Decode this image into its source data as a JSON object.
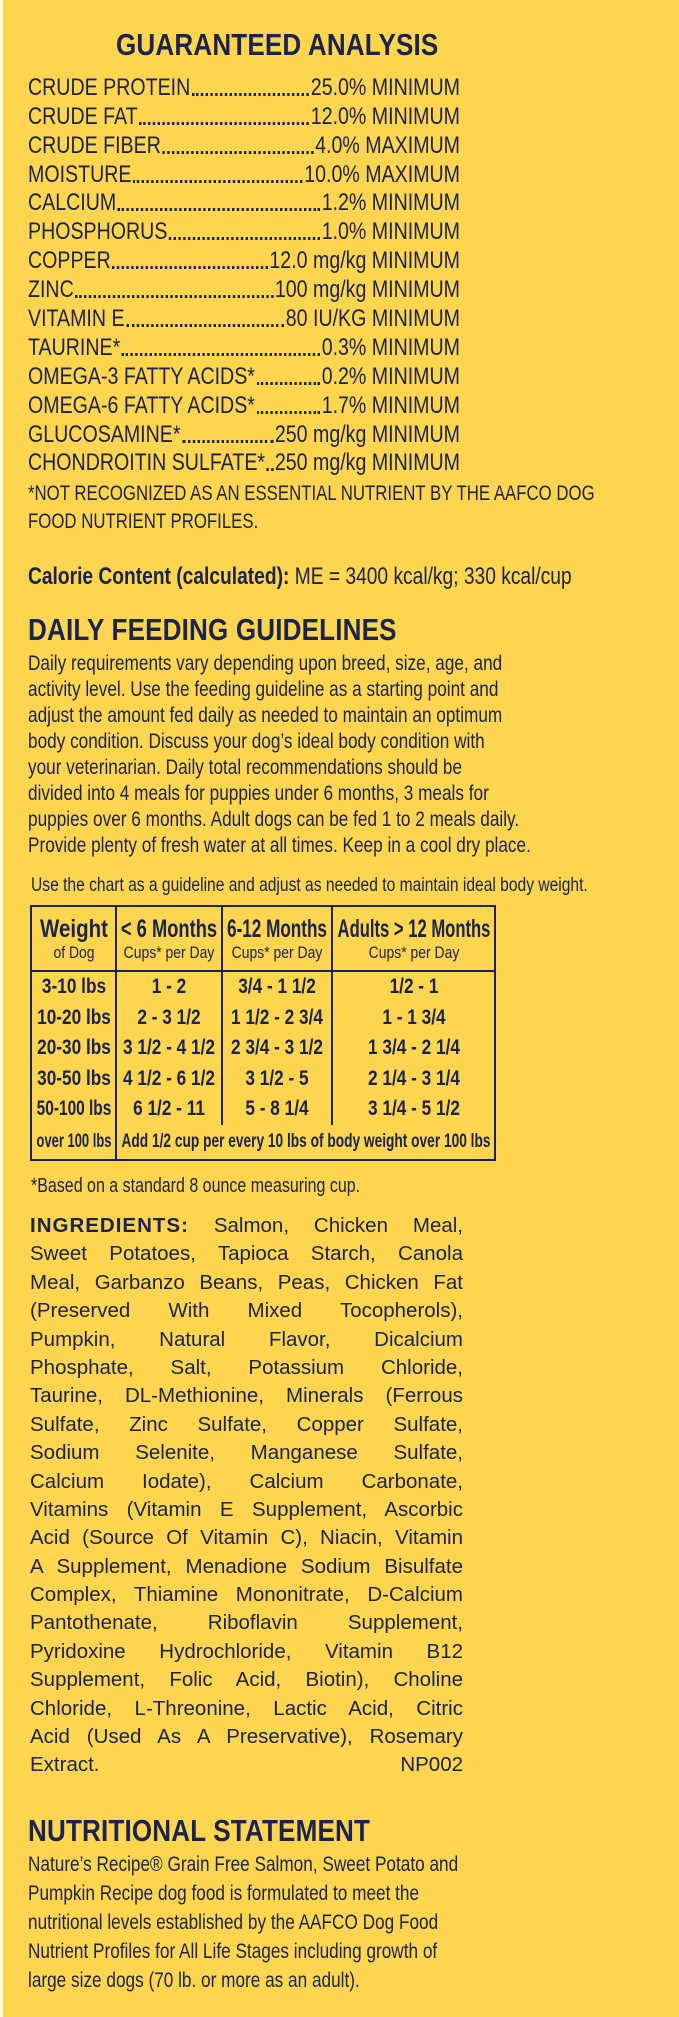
{
  "colors": {
    "background": "#FDD54E",
    "text": "#1B2350"
  },
  "guaranteed_analysis": {
    "title": "GUARANTEED ANALYSIS",
    "rows": [
      {
        "name": "CRUDE PROTEIN",
        "value": "25.0% MINIMUM"
      },
      {
        "name": "CRUDE FAT",
        "value": "12.0% MINIMUM"
      },
      {
        "name": "CRUDE FIBER",
        "value": "4.0% MAXIMUM"
      },
      {
        "name": "MOISTURE",
        "value": "10.0% MAXIMUM"
      },
      {
        "name": "CALCIUM",
        "value": "1.2% MINIMUM"
      },
      {
        "name": "PHOSPHORUS",
        "value": "1.0% MINIMUM"
      },
      {
        "name": "COPPER",
        "value": "12.0 mg/kg MINIMUM"
      },
      {
        "name": "ZINC",
        "value": "100 mg/kg MINIMUM"
      },
      {
        "name": "VITAMIN E",
        "value": "80 IU/KG MINIMUM"
      },
      {
        "name": "TAURINE*",
        "value": "0.3% MINIMUM"
      },
      {
        "name": "OMEGA-3 FATTY ACIDS*",
        "value": "0.2% MINIMUM"
      },
      {
        "name": "OMEGA-6 FATTY ACIDS*",
        "value": "1.7% MINIMUM"
      },
      {
        "name": "GLUCOSAMINE*",
        "value": "250 mg/kg MINIMUM"
      },
      {
        "name": "CHONDROITIN SULFATE*",
        "value": "250 mg/kg MINIMUM"
      }
    ],
    "footnote_lines": [
      "*NOT RECOGNIZED AS AN ESSENTIAL NUTRIENT BY THE AAFCO DOG",
      "FOOD NUTRIENT PROFILES."
    ]
  },
  "calorie": {
    "label": "Calorie Content (calculated):",
    "value": " ME = 3400 kcal/kg; 330 kcal/cup"
  },
  "feeding": {
    "title": "DAILY FEEDING GUIDELINES",
    "lines": [
      "Daily requirements vary depending upon breed, size, age, and",
      "activity level. Use the feeding guideline as a starting point and",
      "adjust the amount fed daily as needed to maintain an optimum",
      "body condition. Discuss your dog’s ideal body condition with",
      "your veterinarian. Daily total recommendations should be",
      "divided into 4 meals for puppies under 6 months, 3 meals for",
      "puppies over 6 months. Adult dogs can be fed 1 to 2 meals daily.",
      "Provide plenty of fresh water at all times. Keep in a cool dry place."
    ],
    "chart_note": "Use the chart as a guideline and adjust as needed to maintain ideal body weight.",
    "table": {
      "headers": [
        {
          "main": "Weight",
          "sub": "of Dog"
        },
        {
          "main": "< 6 Months",
          "sub": "Cups* per Day"
        },
        {
          "main": "6-12 Months",
          "sub": "Cups* per Day"
        },
        {
          "main": "Adults > 12 Months",
          "sub": "Cups* per Day"
        }
      ],
      "rows": [
        [
          "3-10 lbs",
          "1 - 2",
          "3/4 - 1 1/2",
          "1/2 - 1"
        ],
        [
          "10-20 lbs",
          "2 - 3 1/2",
          "1 1/2 - 2 3/4",
          "1 - 1 3/4"
        ],
        [
          "20-30 lbs",
          "3 1/2 - 4 1/2",
          "2 3/4 - 3 1/2",
          "1 3/4 - 2 1/4"
        ],
        [
          "30-50 lbs",
          "4 1/2 - 6 1/2",
          "3 1/2 - 5",
          "2 1/4 - 3 1/4"
        ],
        [
          "50-100 lbs",
          "6 1/2 - 11",
          "5 - 8 1/4",
          "3 1/4 - 5 1/2"
        ]
      ],
      "last_row": {
        "weight": "over 100 lbs",
        "note": "Add 1/2 cup per every 10 lbs of body weight over 100 lbs"
      }
    },
    "footnote": "*Based on a standard 8 ounce measuring cup."
  },
  "ingredients": {
    "label": "INGREDIENTS:",
    "lines": [
      " Salmon, Chicken Meal,",
      "Sweet Potatoes, Tapioca Starch, Canola",
      "Meal, Garbanzo Beans, Peas, Chicken Fat",
      "(Preserved With Mixed Tocopherols),",
      "Pumpkin, Natural Flavor, Dicalcium",
      "Phosphate, Salt, Potassium Chloride,",
      "Taurine, DL-Methionine, Minerals (Ferrous",
      "Sulfate, Zinc Sulfate, Copper Sulfate,",
      "Sodium Selenite, Manganese Sulfate,",
      "Calcium Iodate), Calcium Carbonate,",
      "Vitamins (Vitamin E Supplement, Ascorbic",
      "Acid (Source Of Vitamin C), Niacin, Vitamin",
      "A Supplement, Menadione Sodium Bisulfate",
      "Complex, Thiamine Mononitrate, D-Calcium",
      "Pantothenate, Riboflavin Supplement,",
      "Pyridoxine Hydrochloride, Vitamin B12",
      "Supplement, Folic Acid, Biotin), Choline",
      "Chloride, L-Threonine, Lactic Acid, Citric",
      "Acid (Used As A Preservative), Rosemary"
    ],
    "last_line": "Extract.",
    "code": "NP002"
  },
  "nutritional_statement": {
    "title": "NUTRITIONAL STATEMENT",
    "lines": [
      "Nature’s Recipe® Grain Free Salmon, Sweet Potato and",
      "Pumpkin Recipe dog food is formulated to meet the",
      "nutritional levels established by the AAFCO Dog Food",
      "Nutrient Profiles for All Life Stages including growth of",
      "large size dogs (70 lb. or more as an adult)."
    ]
  }
}
